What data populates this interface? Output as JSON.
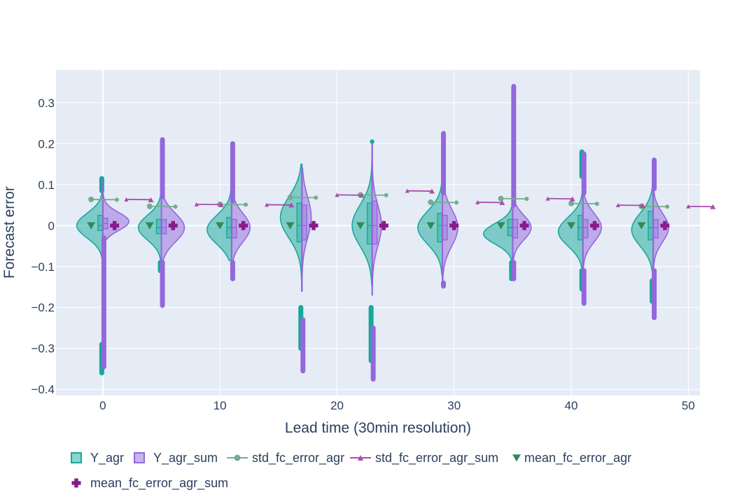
{
  "chart_data": {
    "type": "violin",
    "title": "",
    "xlabel": "Lead time (30min resolution)",
    "ylabel": "Forecast error",
    "xlim": [
      -4,
      51
    ],
    "ylim": [
      -0.415,
      0.38
    ],
    "x_ticks": [
      0,
      10,
      20,
      30,
      40,
      50
    ],
    "y_ticks": [
      -0.4,
      -0.3,
      -0.2,
      -0.1,
      0,
      0.1,
      0.2,
      0.3
    ],
    "x_tick_labels": [
      "0",
      "10",
      "20",
      "30",
      "40",
      "50"
    ],
    "y_tick_labels": [
      "−0.4",
      "−0.3",
      "−0.2",
      "−0.1",
      "0",
      "0.1",
      "0.2",
      "0.3"
    ],
    "grid": true,
    "legend_position": "bottom",
    "groups": [
      {
        "x": 0,
        "agr": {
          "q1": -0.012,
          "median": 0.0,
          "q3": 0.025,
          "wlo": -0.1,
          "whi": 0.08,
          "peak": 0.0,
          "width": 0.85,
          "spread": 0.03,
          "out_lo": [
            -0.29,
            -0.36
          ],
          "out_hi": [
            0.085,
            0.115
          ]
        },
        "sum": {
          "q1": -0.008,
          "median": 0.005,
          "q3": 0.018,
          "wlo": -0.17,
          "whi": 0.11,
          "peak": 0.01,
          "width": 0.85,
          "spread": 0.022,
          "out_lo": [
            -0.03,
            -0.345
          ],
          "out_hi": []
        }
      },
      {
        "x": 5,
        "agr": {
          "q1": -0.02,
          "median": -0.005,
          "q3": 0.015,
          "wlo": -0.09,
          "whi": 0.07,
          "peak": -0.005,
          "width": 0.75,
          "spread": 0.03,
          "out_lo": [
            -0.09,
            -0.11
          ],
          "out_hi": []
        },
        "sum": {
          "q1": -0.02,
          "median": -0.005,
          "q3": 0.015,
          "wlo": -0.09,
          "whi": 0.07,
          "peak": -0.005,
          "width": 0.75,
          "spread": 0.035,
          "out_lo": [
            -0.09,
            -0.195
          ],
          "out_hi": [
            0.07,
            0.21
          ]
        }
      },
      {
        "x": 11,
        "agr": {
          "q1": -0.03,
          "median": -0.005,
          "q3": 0.02,
          "wlo": -0.085,
          "whi": 0.09,
          "peak": -0.01,
          "width": 0.8,
          "spread": 0.035,
          "out_lo": [],
          "out_hi": []
        },
        "sum": {
          "q1": -0.03,
          "median": -0.005,
          "q3": 0.015,
          "wlo": -0.09,
          "whi": 0.06,
          "peak": -0.005,
          "width": 0.6,
          "spread": 0.035,
          "out_lo": [
            -0.09,
            -0.13
          ],
          "out_hi": [
            0.06,
            0.2
          ]
        }
      },
      {
        "x": 17,
        "agr": {
          "q1": -0.04,
          "median": 0.0,
          "q3": 0.055,
          "wlo": -0.16,
          "whi": 0.15,
          "peak": 0.02,
          "width": 0.7,
          "spread": 0.05,
          "out_lo": [
            -0.2,
            -0.3
          ],
          "out_hi": []
        },
        "sum": {
          "q1": -0.035,
          "median": 0.0,
          "q3": 0.05,
          "wlo": -0.16,
          "whi": 0.14,
          "peak": 0.02,
          "width": 0.3,
          "spread": 0.05,
          "out_lo": [
            -0.23,
            -0.355
          ],
          "out_hi": []
        }
      },
      {
        "x": 23,
        "agr": {
          "q1": -0.045,
          "median": 0.0,
          "q3": 0.055,
          "wlo": -0.145,
          "whi": 0.2,
          "peak": 0.0,
          "width": 0.65,
          "spread": 0.05,
          "out_lo": [
            -0.2,
            -0.33
          ],
          "out_hi": [
            0.205
          ]
        },
        "sum": {
          "q1": -0.045,
          "median": 0.0,
          "q3": 0.06,
          "wlo": -0.17,
          "whi": 0.2,
          "peak": 0.0,
          "width": 0.3,
          "spread": 0.05,
          "out_lo": [
            -0.25,
            -0.375
          ],
          "out_hi": []
        }
      },
      {
        "x": 29,
        "agr": {
          "q1": -0.04,
          "median": 0.0,
          "q3": 0.03,
          "wlo": -0.12,
          "whi": 0.11,
          "peak": -0.005,
          "width": 0.8,
          "spread": 0.04,
          "out_lo": [],
          "out_hi": []
        },
        "sum": {
          "q1": -0.035,
          "median": 0.0,
          "q3": 0.025,
          "wlo": -0.14,
          "whi": 0.08,
          "peak": -0.005,
          "width": 0.5,
          "spread": 0.045,
          "out_lo": [
            -0.14,
            -0.148
          ],
          "out_hi": [
            0.08,
            0.225
          ]
        }
      },
      {
        "x": 35,
        "agr": {
          "q1": -0.025,
          "median": -0.005,
          "q3": 0.015,
          "wlo": -0.1,
          "whi": 0.07,
          "peak": -0.02,
          "width": 0.95,
          "spread": 0.025,
          "out_lo": [
            -0.09,
            -0.13
          ],
          "out_hi": []
        },
        "sum": {
          "q1": -0.03,
          "median": -0.005,
          "q3": 0.015,
          "wlo": -0.09,
          "whi": 0.3,
          "peak": -0.005,
          "width": 0.6,
          "spread": 0.03,
          "out_lo": [
            -0.09,
            -0.13
          ],
          "out_hi": [
            0.05,
            0.34
          ]
        }
      },
      {
        "x": 41,
        "agr": {
          "q1": -0.035,
          "median": -0.005,
          "q3": 0.025,
          "wlo": -0.11,
          "whi": 0.12,
          "peak": -0.015,
          "width": 0.8,
          "spread": 0.035,
          "out_lo": [
            -0.11,
            -0.155
          ],
          "out_hi": [
            0.12,
            0.18
          ]
        },
        "sum": {
          "q1": -0.03,
          "median": -0.005,
          "q3": 0.015,
          "wlo": -0.11,
          "whi": 0.08,
          "peak": -0.005,
          "width": 0.6,
          "spread": 0.035,
          "out_lo": [
            -0.11,
            -0.19
          ],
          "out_hi": [
            0.08,
            0.175
          ]
        }
      },
      {
        "x": 47,
        "agr": {
          "q1": -0.035,
          "median": -0.005,
          "q3": 0.035,
          "wlo": -0.13,
          "whi": 0.11,
          "peak": -0.01,
          "width": 0.7,
          "spread": 0.04,
          "out_lo": [
            -0.135,
            -0.185
          ],
          "out_hi": []
        },
        "sum": {
          "q1": -0.03,
          "median": -0.005,
          "q3": 0.015,
          "wlo": -0.11,
          "whi": 0.09,
          "peak": -0.005,
          "width": 0.5,
          "spread": 0.035,
          "out_lo": [
            -0.11,
            -0.225
          ],
          "out_hi": [
            0.09,
            0.16
          ]
        }
      }
    ],
    "series": [
      {
        "name": "Y_agr",
        "kind": "violin",
        "side": "negative",
        "color": "#17a89a"
      },
      {
        "name": "Y_agr_sum",
        "kind": "violin",
        "side": "positive",
        "color": "#9467dc"
      },
      {
        "name": "std_fc_error_agr",
        "kind": "line",
        "color": "#74ad8e",
        "x": [
          -1,
          4,
          10,
          16,
          22,
          28,
          34,
          40,
          46
        ],
        "values": [
          0.064,
          0.047,
          0.052,
          0.069,
          0.075,
          0.057,
          0.066,
          0.054,
          0.047
        ]
      },
      {
        "name": "std_fc_error_agr_sum",
        "kind": "line",
        "color": "#a84ea8",
        "x": [
          2,
          8,
          14,
          20,
          26,
          32,
          38,
          44,
          50
        ],
        "values": [
          0.064,
          0.052,
          0.051,
          0.075,
          0.085,
          0.057,
          0.066,
          0.05,
          0.047
        ]
      },
      {
        "name": "mean_fc_error_agr",
        "kind": "marker",
        "symbol": "triangle-down",
        "color": "#2e8b57",
        "x": [
          -1,
          4,
          10,
          16,
          22,
          28,
          34,
          40,
          46
        ],
        "values": [
          0,
          0,
          0,
          0,
          0,
          0,
          0,
          0,
          0
        ]
      },
      {
        "name": "mean_fc_error_agr_sum",
        "kind": "marker",
        "symbol": "cross",
        "color": "#8b1a8b",
        "x": [
          1,
          6,
          12,
          18,
          24,
          30,
          36,
          42,
          48
        ],
        "values": [
          0,
          0,
          0,
          0,
          0,
          0,
          0,
          0,
          0
        ]
      }
    ]
  }
}
